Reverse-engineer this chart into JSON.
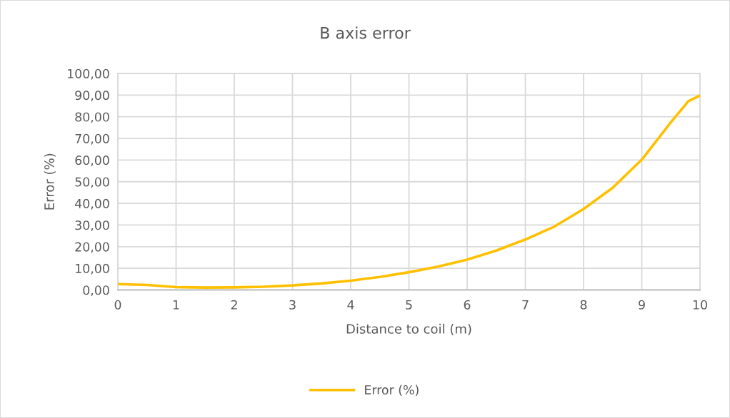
{
  "chart_data": {
    "type": "line",
    "title": "B axis error",
    "xlabel": "Distance to coil (m)",
    "ylabel": "Error (%)",
    "series": [
      {
        "name": "Error (%)",
        "color": "#ffc000",
        "x": [
          0,
          0.5,
          1,
          1.5,
          2,
          2.5,
          3,
          3.5,
          4,
          4.5,
          5,
          5.5,
          6,
          6.5,
          7,
          7.5,
          8,
          8.5,
          9,
          9.5,
          9.8,
          10
        ],
        "values": [
          2.7,
          2.3,
          1.3,
          1.1,
          1.2,
          1.5,
          2.1,
          3.0,
          4.3,
          6.0,
          8.2,
          10.8,
          14.0,
          18.2,
          23.3,
          29.3,
          37.4,
          47.2,
          60.2,
          77.5,
          87.2,
          89.8
        ]
      }
    ],
    "xlim": [
      0,
      10
    ],
    "xticks": [
      0,
      1,
      2,
      3,
      4,
      5,
      6,
      7,
      8,
      9,
      10
    ],
    "ylim": [
      0,
      100
    ],
    "yticks": [
      {
        "value": 0,
        "label": "0,00"
      },
      {
        "value": 10,
        "label": "10,00"
      },
      {
        "value": 20,
        "label": "20,00"
      },
      {
        "value": 30,
        "label": "30,00"
      },
      {
        "value": 40,
        "label": "40,00"
      },
      {
        "value": 50,
        "label": "50,00"
      },
      {
        "value": 60,
        "label": "60,00"
      },
      {
        "value": 70,
        "label": "70,00"
      },
      {
        "value": 80,
        "label": "80,00"
      },
      {
        "value": 90,
        "label": "90,00"
      },
      {
        "value": 100,
        "label": "100,00"
      }
    ],
    "grid": true,
    "legend": "bottom",
    "marker": "none",
    "line_style": "solid"
  }
}
